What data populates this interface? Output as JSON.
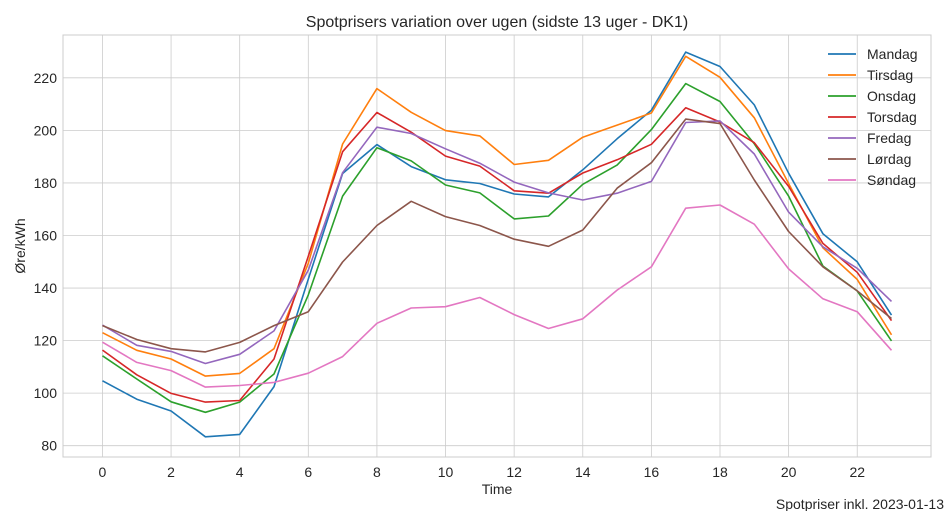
{
  "chart_data": {
    "type": "line",
    "title": "Spotprisers variation over ugen (sidste 13 uger - DK1)",
    "xlabel": "Time",
    "ylabel": "Øre/kWh",
    "footer": "Spotpriser inkl. 2023-01-13",
    "xlim": [
      -1.15,
      24.15
    ],
    "ylim": [
      75.7,
      236.3
    ],
    "x_ticks": [
      0,
      2,
      4,
      6,
      8,
      10,
      12,
      14,
      16,
      18,
      20,
      22
    ],
    "y_ticks": [
      80,
      100,
      120,
      140,
      160,
      180,
      200,
      220
    ],
    "grid": true,
    "legend_position": "top-right",
    "x": [
      0,
      1,
      2,
      3,
      4,
      5,
      6,
      7,
      8,
      9,
      10,
      11,
      12,
      13,
      14,
      15,
      16,
      17,
      18,
      19,
      20,
      21,
      22,
      23
    ],
    "series": [
      {
        "name": "Mandag",
        "color": "#1f77b4",
        "values": [
          104.7,
          97.7,
          93.2,
          83.4,
          84.3,
          102.5,
          143.4,
          183.6,
          194.6,
          186.2,
          181.2,
          179.8,
          175.8,
          174.7,
          185.0,
          196.8,
          207.7,
          229.8,
          224.3,
          209.7,
          183.7,
          160.7,
          150.0,
          129.7
        ]
      },
      {
        "name": "Tirsdag",
        "color": "#ff7f0e",
        "values": [
          123.0,
          116.3,
          113.0,
          106.5,
          107.5,
          116.9,
          149.4,
          194.8,
          215.9,
          206.9,
          199.9,
          197.9,
          187.0,
          188.6,
          197.4,
          202.0,
          206.6,
          228.2,
          220.2,
          204.8,
          179.8,
          155.3,
          143.3,
          122.2
        ]
      },
      {
        "name": "Onsdag",
        "color": "#2ca02c",
        "values": [
          114.2,
          105.4,
          96.7,
          92.7,
          96.6,
          107.3,
          137.4,
          175.0,
          193.4,
          188.4,
          179.2,
          176.2,
          166.3,
          167.4,
          179.5,
          186.8,
          200.3,
          217.8,
          211.0,
          194.9,
          175.0,
          148.4,
          138.9,
          119.9
        ]
      },
      {
        "name": "Torsdag",
        "color": "#d62728",
        "values": [
          116.4,
          107.0,
          99.9,
          96.6,
          97.2,
          113.0,
          152.1,
          191.9,
          206.8,
          199.3,
          190.2,
          186.4,
          177.0,
          176.1,
          183.8,
          188.8,
          194.7,
          208.6,
          203.2,
          195.3,
          178.7,
          157.0,
          146.0,
          127.6
        ]
      },
      {
        "name": "Fredag",
        "color": "#9467bd",
        "values": [
          125.9,
          118.2,
          115.9,
          111.3,
          114.8,
          123.7,
          146.8,
          183.9,
          201.2,
          198.8,
          193.0,
          187.5,
          180.3,
          176.2,
          173.5,
          176.1,
          180.6,
          203.0,
          203.6,
          191.0,
          168.9,
          155.7,
          147.5,
          134.9
        ]
      },
      {
        "name": "Lørdag",
        "color": "#8c564b",
        "values": [
          125.7,
          120.4,
          116.9,
          115.7,
          119.3,
          125.7,
          131.0,
          149.9,
          163.8,
          173.0,
          167.2,
          163.8,
          158.6,
          155.9,
          162.1,
          178.0,
          187.7,
          204.3,
          202.6,
          181.1,
          161.5,
          148.1,
          138.9,
          128.4
        ]
      },
      {
        "name": "Søndag",
        "color": "#e377c2",
        "values": [
          119.4,
          111.7,
          108.6,
          102.3,
          102.9,
          104.1,
          107.6,
          113.9,
          126.6,
          132.4,
          132.9,
          136.4,
          129.9,
          124.6,
          128.3,
          139.2,
          148.1,
          170.4,
          171.6,
          164.3,
          147.3,
          135.9,
          131.0,
          116.3
        ]
      }
    ]
  }
}
